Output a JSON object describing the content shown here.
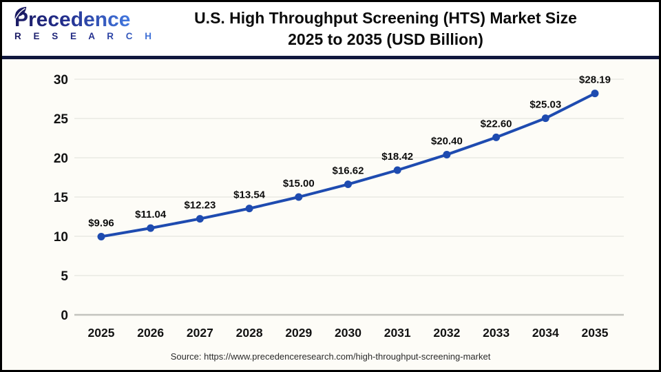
{
  "header": {
    "logo_main": "Precedence",
    "logo_sub": "R E S E A R C H",
    "title_line1": "U.S. High Throughput Screening (HTS) Market Size",
    "title_line2": "2025 to 2035 (USD Billion)"
  },
  "footer": {
    "source_text": "Source: https://www.precedenceresearch.com/high-throughput-screening-market"
  },
  "colors": {
    "line": "#1e4bb0",
    "marker": "#1e4bb0",
    "header_divider": "#10173d",
    "logo_dark": "#1b1b63",
    "logo_light": "#4379e0"
  },
  "chart_data": {
    "type": "line",
    "title": "U.S. High Throughput Screening (HTS) Market Size 2025 to 2035 (USD Billion)",
    "xlabel": "",
    "ylabel": "",
    "categories": [
      "2025",
      "2026",
      "2027",
      "2028",
      "2029",
      "2030",
      "2031",
      "2032",
      "2033",
      "2034",
      "2035"
    ],
    "values": [
      9.96,
      11.04,
      12.23,
      13.54,
      15.0,
      16.62,
      18.42,
      20.4,
      22.6,
      25.03,
      28.19
    ],
    "point_labels": [
      "$9.96",
      "$11.04",
      "$12.23",
      "$13.54",
      "$15.00",
      "$16.62",
      "$18.42",
      "$20.40",
      "$22.60",
      "$25.03",
      "$28.19"
    ],
    "yticks": [
      0,
      5,
      10,
      15,
      20,
      25,
      30
    ],
    "ylim": [
      0,
      30
    ],
    "grid": "horizontal",
    "legend": "none"
  }
}
